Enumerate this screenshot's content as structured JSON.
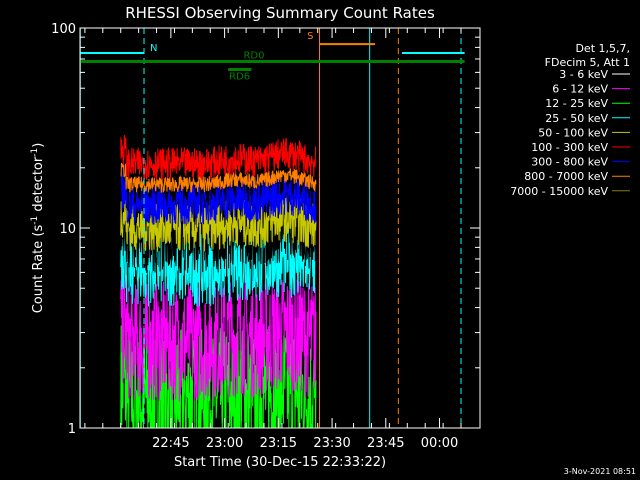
{
  "chart_data": {
    "type": "line",
    "title": "RHESSI Observing Summary Count Rates",
    "xlabel": "Start Time (30-Dec-15 22:33:22)",
    "ylabel_main": "Count Rate (s",
    "ylabel_sup": "-1",
    "ylabel_tail": " detector",
    "ylabel_end": ")",
    "yscale": "log",
    "ylim": [
      1,
      100
    ],
    "y_ticks": [
      {
        "value": 1,
        "label": "1"
      },
      {
        "value": 10,
        "label": "10"
      },
      {
        "value": 100,
        "label": "100"
      }
    ],
    "x_ticks": [
      {
        "minutes": 12,
        "label": "22:45"
      },
      {
        "minutes": 27,
        "label": "23:00"
      },
      {
        "minutes": 42,
        "label": "23:15"
      },
      {
        "minutes": 57,
        "label": "23:30"
      },
      {
        "minutes": 72,
        "label": "23:45"
      },
      {
        "minutes": 87,
        "label": "00:00"
      }
    ],
    "legend_header": [
      "Det 1,5,7,",
      "FDecim 5, Att 1"
    ],
    "legend_position": "right",
    "series": [
      {
        "name": "3 - 6 keV",
        "color": "#000000",
        "level": 9.0,
        "spread": 0.18
      },
      {
        "name": "6 - 12 keV",
        "color": "#ff00ff",
        "level": 2.7,
        "spread": 0.3
      },
      {
        "name": "12 - 25 keV",
        "color": "#00ff00",
        "level": 1.4,
        "spread": 0.35
      },
      {
        "name": "25 - 50 keV",
        "color": "#00ffff",
        "level": 6.4,
        "spread": 0.2
      },
      {
        "name": "50 - 100 keV",
        "color": "#c8c800",
        "level": 10.0,
        "spread": 0.12
      },
      {
        "name": "100 - 300 keV",
        "color": "#ff0000",
        "level": 21.0,
        "spread": 0.08
      },
      {
        "name": "300 - 800 keV",
        "color": "#0000ff",
        "level": 13.0,
        "spread": 0.1
      },
      {
        "name": "800 - 7000 keV",
        "color": "#ff8000",
        "level": 16.5,
        "spread": 0.04
      },
      {
        "name": "7000 - 15000 keV",
        "color": "#808000",
        "level": 0,
        "spread": 0
      }
    ],
    "data_range_minutes": [
      -2.0,
      52.5
    ],
    "flags": [
      {
        "label": "N",
        "color": "#00ffff",
        "start": -13.3,
        "end": 4.5,
        "level": 75
      },
      {
        "label": "N",
        "color": "#00ffff",
        "start": 76.5,
        "end": 94.0,
        "level": 75
      },
      {
        "label": "S",
        "color": "#ff8000",
        "start": 53.5,
        "end": 69.0,
        "level": 83
      },
      {
        "label": "RD0",
        "color": "#008000",
        "start": -13.3,
        "end": 94.0,
        "level": 68
      },
      {
        "label": "RD6",
        "color": "#008000",
        "start": 28.0,
        "end": 34.5,
        "level": 62
      }
    ],
    "vertical_markers": [
      {
        "minutes": -13.3,
        "color": "#00ffff",
        "style": "solid"
      },
      {
        "minutes": 4.5,
        "color": "#00ffff",
        "style": "dashed"
      },
      {
        "minutes": 67.5,
        "color": "#00ffff",
        "style": "solid"
      },
      {
        "minutes": 93.0,
        "color": "#00ffff",
        "style": "dashed"
      },
      {
        "minutes": 53.5,
        "color": "#ff8000",
        "style": "solid"
      },
      {
        "minutes": 75.5,
        "color": "#ff8000",
        "style": "dashed"
      }
    ],
    "footer_date": "3-Nov-2021 08:51"
  }
}
